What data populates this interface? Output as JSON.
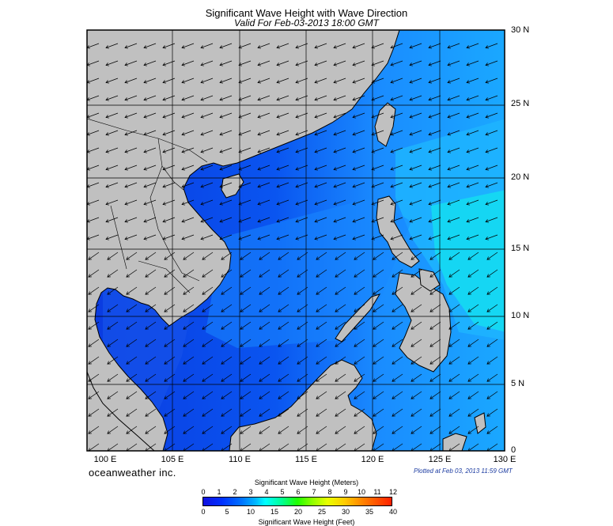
{
  "title": "Significant Wave Height with Wave Direction",
  "subtitle": "Valid For Feb-03-2013 18:00 GMT",
  "lat_labels": [
    "30 N",
    "25 N",
    "20 N",
    "15 N",
    "10 N",
    "5 N",
    "0"
  ],
  "lon_labels": [
    "100 E",
    "105 E",
    "110 E",
    "115 E",
    "120 E",
    "125 E",
    "130 E"
  ],
  "brand": "oceanweather inc.",
  "plotted": "Plotted at Feb 03, 2013 11:59 GMT",
  "colorbar": {
    "title_top": "Significant Wave Height (Meters)",
    "title_bottom": "Significant Wave Height (Feet)",
    "meters_ticks": [
      "0",
      "1",
      "2",
      "3",
      "4",
      "5",
      "6",
      "7",
      "8",
      "9",
      "10",
      "11",
      "12"
    ],
    "feet_ticks": [
      "0",
      "5",
      "10",
      "15",
      "20",
      "25",
      "30",
      "35",
      "40"
    ]
  },
  "colors": {
    "land": "#c0c0c0",
    "deep_blue": "#0a2ad8",
    "mid_blue": "#0a5cf0",
    "light_blue": "#1a9aff",
    "cyan": "#00e0f0"
  },
  "map": {
    "lon_range": [
      99,
      130
    ],
    "lat_range": [
      0,
      30
    ],
    "arrow_direction": "toward southwest (NE monsoon)"
  }
}
